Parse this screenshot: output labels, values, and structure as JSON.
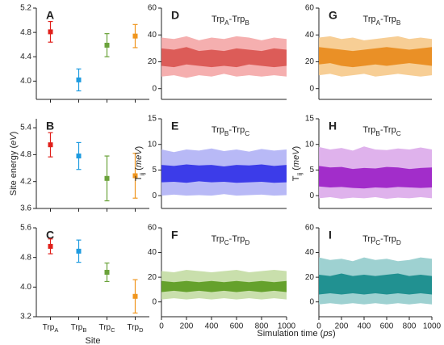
{
  "shared_xlabel": [
    {
      "t": "Simulation time ("
    },
    {
      "t": "ps",
      "italic": true
    },
    {
      "t": ")"
    }
  ],
  "chart_data": [
    {
      "type": "errorbar",
      "label": "A",
      "values": [
        4.81,
        4.02,
        4.59,
        4.74
      ],
      "errors": [
        0.17,
        0.18,
        0.19,
        0.19
      ],
      "colors": [
        "#e0201b",
        "#1e9be0",
        "#6aa23a",
        "#f0961e"
      ],
      "ylim": [
        3.7,
        5.2
      ],
      "yticks": [
        {
          "value": 4,
          "label": "4.0"
        },
        4.4,
        4.8,
        5.2
      ]
    },
    {
      "type": "errorbar",
      "label": "B",
      "ylabel": [
        {
          "t": "Site energy ("
        },
        {
          "t": "eV",
          "italic": true
        },
        {
          "t": ")"
        }
      ],
      "values": [
        5.02,
        4.77,
        4.27,
        4.33
      ],
      "errors": [
        0.27,
        0.3,
        0.5,
        0.5
      ],
      "colors": [
        "#e0201b",
        "#1e9be0",
        "#6aa23a",
        "#f0961e"
      ],
      "ylim": [
        3.6,
        5.6
      ],
      "yticks": [
        3.6,
        4.2,
        4.8,
        5.4
      ]
    },
    {
      "type": "errorbar",
      "label": "C",
      "xlabel": "Site",
      "categories": [
        [
          {
            "t": "Trp"
          },
          {
            "t": "A",
            "sub": true
          }
        ],
        [
          {
            "t": "Trp"
          },
          {
            "t": "B",
            "sub": true
          }
        ],
        [
          {
            "t": "Trp"
          },
          {
            "t": "C",
            "sub": true
          }
        ],
        [
          {
            "t": "Trp"
          },
          {
            "t": "D",
            "sub": true
          }
        ]
      ],
      "values": [
        5.1,
        4.97,
        4.4,
        3.75
      ],
      "errors": [
        0.2,
        0.3,
        0.25,
        0.45
      ],
      "colors": [
        "#e0201b",
        "#1e9be0",
        "#6aa23a",
        "#f0961e"
      ],
      "ylim": [
        3.2,
        5.6
      ],
      "yticks": [
        3.2,
        {
          "value": 4,
          "label": "4.0"
        },
        4.8,
        5.6
      ]
    },
    {
      "type": "band",
      "label": "D",
      "title": [
        {
          "t": "Trp"
        },
        {
          "t": "A",
          "sub": true
        },
        {
          "t": "-Trp"
        },
        {
          "t": "B",
          "sub": true
        }
      ],
      "xlim": [
        0,
        1000
      ],
      "x": [
        0,
        100,
        200,
        300,
        400,
        500,
        600,
        700,
        800,
        900,
        1000
      ],
      "ylim": [
        -8,
        60
      ],
      "yticks": [
        0,
        20,
        40,
        60
      ],
      "series": [
        {
          "color": "#f4a6a6",
          "upper": [
            38,
            37,
            39,
            36,
            38,
            37,
            39,
            38,
            36,
            38,
            37
          ],
          "lower": [
            9,
            10,
            8,
            10,
            9,
            11,
            9,
            10,
            9,
            10,
            9
          ]
        },
        {
          "color": "#d9534f",
          "upper": [
            30,
            29,
            31,
            28,
            29,
            28,
            30,
            29,
            28,
            30,
            29
          ],
          "lower": [
            17,
            16,
            18,
            17,
            16,
            17,
            16,
            18,
            17,
            16,
            17
          ]
        }
      ]
    },
    {
      "type": "band",
      "label": "E",
      "title": [
        {
          "t": "Trp"
        },
        {
          "t": "B",
          "sub": true
        },
        {
          "t": "-Trp"
        },
        {
          "t": "C",
          "sub": true
        }
      ],
      "ylabel": [
        {
          "t": "T"
        },
        {
          "t": "ij",
          "sub": true
        },
        {
          "t": " ("
        },
        {
          "t": "meV",
          "italic": true
        },
        {
          "t": ")"
        }
      ],
      "xlim": [
        0,
        1000
      ],
      "x": [
        0,
        100,
        200,
        300,
        400,
        500,
        600,
        700,
        800,
        900,
        1000
      ],
      "ylim": [
        -2.5,
        15
      ],
      "yticks": [
        0,
        5,
        10,
        15
      ],
      "series": [
        {
          "color": "#b0b1f5",
          "upper": [
            9,
            8.5,
            9,
            8.8,
            9.2,
            8.7,
            9,
            8.6,
            9.1,
            8.8,
            9
          ],
          "lower": [
            0,
            0.2,
            0,
            0.1,
            0,
            0.3,
            0,
            0.1,
            0.2,
            0,
            0.1
          ]
        },
        {
          "color": "#2f2fe8",
          "upper": [
            6,
            5.8,
            6.1,
            5.9,
            6,
            5.7,
            6,
            5.9,
            6.1,
            5.8,
            6
          ],
          "lower": [
            2.6,
            2.7,
            2.5,
            2.8,
            2.6,
            2.7,
            2.5,
            2.6,
            2.7,
            2.5,
            2.6
          ]
        }
      ]
    },
    {
      "type": "band",
      "label": "F",
      "title": [
        {
          "t": "Trp"
        },
        {
          "t": "C",
          "sub": true
        },
        {
          "t": "-Trp"
        },
        {
          "t": "D",
          "sub": true
        }
      ],
      "xlim": [
        0,
        1000
      ],
      "xticks": [
        0,
        200,
        400,
        600,
        800,
        1000
      ],
      "x": [
        0,
        100,
        200,
        300,
        400,
        500,
        600,
        700,
        800,
        900,
        1000
      ],
      "ylim": [
        -12,
        60
      ],
      "yticks": [
        0,
        20,
        40,
        60
      ],
      "series": [
        {
          "color": "#c3dca3",
          "upper": [
            25,
            24,
            26,
            25,
            24,
            25,
            26,
            24,
            25,
            26,
            25
          ],
          "lower": [
            2,
            3,
            2,
            3,
            2,
            3,
            2,
            3,
            2,
            3,
            2
          ]
        },
        {
          "color": "#5a9a1e",
          "upper": [
            17,
            16,
            17,
            16,
            17,
            16,
            17,
            16,
            17,
            16,
            17
          ],
          "lower": [
            8,
            9,
            8,
            9,
            8,
            9,
            8,
            9,
            8,
            9,
            8
          ]
        }
      ]
    },
    {
      "type": "band",
      "label": "G",
      "title": [
        {
          "t": "Trp"
        },
        {
          "t": "A",
          "sub": true
        },
        {
          "t": "-Trp"
        },
        {
          "t": "B",
          "sub": true
        }
      ],
      "xlim": [
        0,
        1000
      ],
      "x": [
        0,
        100,
        200,
        300,
        400,
        500,
        600,
        700,
        800,
        900,
        1000
      ],
      "ylim": [
        -8,
        60
      ],
      "yticks": [
        0,
        20,
        40,
        60
      ],
      "series": [
        {
          "color": "#f6c98a",
          "upper": [
            38,
            39,
            37,
            38,
            36,
            37,
            38,
            39,
            37,
            38,
            37
          ],
          "lower": [
            10,
            11,
            9,
            10,
            11,
            9,
            10,
            11,
            10,
            9,
            10
          ]
        },
        {
          "color": "#e8891a",
          "upper": [
            31,
            30,
            29,
            28,
            29,
            30,
            31,
            30,
            29,
            30,
            31
          ],
          "lower": [
            18,
            19,
            17,
            16,
            17,
            18,
            17,
            18,
            19,
            18,
            17
          ]
        }
      ]
    },
    {
      "type": "band",
      "label": "H",
      "title": [
        {
          "t": "Trp"
        },
        {
          "t": "B",
          "sub": true
        },
        {
          "t": "-Trp"
        },
        {
          "t": "C",
          "sub": true
        }
      ],
      "ylabel": [
        {
          "t": "T"
        },
        {
          "t": "ij",
          "sub": true
        },
        {
          "t": " ("
        },
        {
          "t": "meV",
          "italic": true
        },
        {
          "t": ")"
        }
      ],
      "xlim": [
        0,
        1000
      ],
      "x": [
        0,
        100,
        200,
        300,
        400,
        500,
        600,
        700,
        800,
        900,
        1000
      ],
      "ylim": [
        -2.5,
        15
      ],
      "yticks": [
        0,
        5,
        10,
        15
      ],
      "series": [
        {
          "color": "#dcaaea",
          "upper": [
            9.5,
            9,
            9.3,
            8.8,
            9.6,
            9,
            8.9,
            9.2,
            9,
            9.4,
            9
          ],
          "lower": [
            -0.5,
            -0.3,
            -0.6,
            -0.4,
            -0.5,
            -0.3,
            -0.6,
            -0.4,
            -0.5,
            -0.3,
            -0.5
          ]
        },
        {
          "color": "#9b1ec7",
          "upper": [
            5.8,
            5.5,
            5.6,
            5.2,
            5.4,
            5.3,
            5.6,
            5.5,
            5.2,
            5.4,
            5.5
          ],
          "lower": [
            1.8,
            1.6,
            1.7,
            1.5,
            1.4,
            1.6,
            1.5,
            1.7,
            1.6,
            1.5,
            1.6
          ]
        }
      ]
    },
    {
      "type": "band",
      "label": "I",
      "title": [
        {
          "t": "Trp"
        },
        {
          "t": "C",
          "sub": true
        },
        {
          "t": "-Trp"
        },
        {
          "t": "D",
          "sub": true
        }
      ],
      "xlim": [
        0,
        1000
      ],
      "xticks": [
        0,
        200,
        400,
        600,
        800,
        1000
      ],
      "x": [
        0,
        100,
        200,
        300,
        400,
        500,
        600,
        700,
        800,
        900,
        1000
      ],
      "ylim": [
        -12,
        60
      ],
      "yticks": [
        0,
        20,
        40,
        60
      ],
      "series": [
        {
          "color": "#93cccc",
          "upper": [
            36,
            34,
            35,
            33,
            36,
            34,
            35,
            33,
            34,
            36,
            35
          ],
          "lower": [
            -2,
            -1,
            -2,
            -1,
            -2,
            -1,
            -2,
            -1,
            -2,
            -1,
            -2
          ]
        },
        {
          "color": "#138a8a",
          "upper": [
            22,
            21,
            23,
            21,
            22,
            21,
            22,
            23,
            21,
            22,
            21
          ],
          "lower": [
            6,
            7,
            6,
            7,
            6,
            7,
            6,
            7,
            6,
            7,
            6
          ]
        }
      ]
    }
  ]
}
